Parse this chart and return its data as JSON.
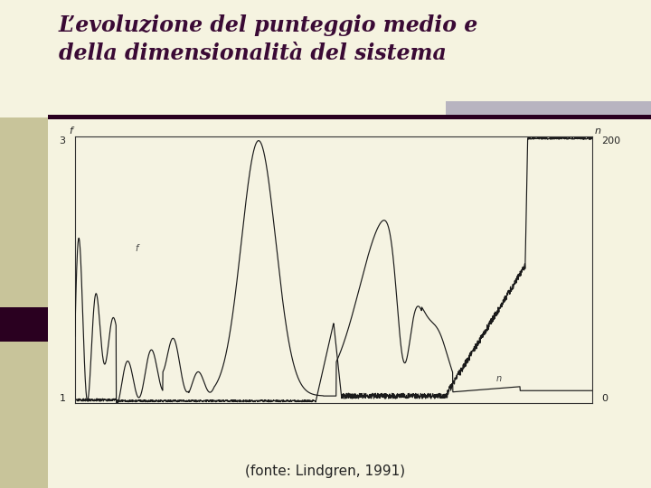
{
  "title_line1": "L’evoluzione del punteggio medio e",
  "title_line2": "della dimensionalità del sistema",
  "caption": "(fonte: Lindgren, 1991)",
  "bg_color": "#f5f3e0",
  "title_color": "#3a0a35",
  "plot_bg": "#f5f3e2",
  "left_bar_color": "#c8c49a",
  "right_accent_color": "#b8b4c0",
  "dark_strip_color": "#2a0020",
  "line_color": "#1a1a1a",
  "rule_color": "#2a0020"
}
